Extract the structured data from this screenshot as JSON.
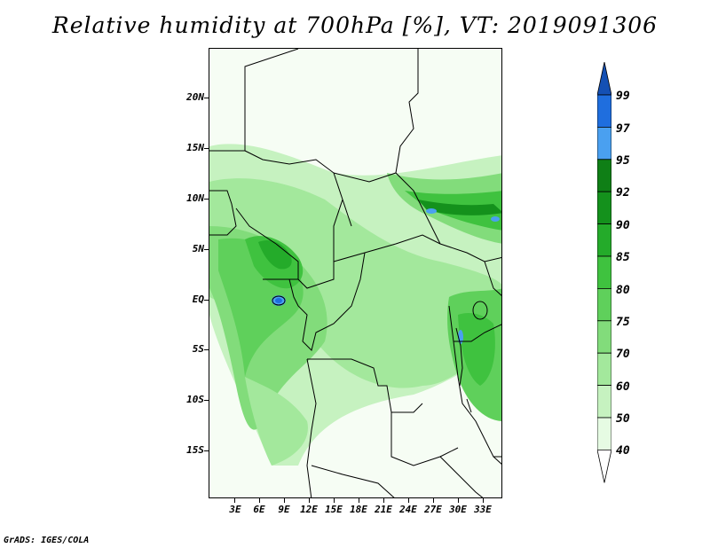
{
  "title": "Relative humidity at 700hPa [%], VT: 2019091306",
  "credit": "GrADS: IGES/COLA",
  "lat_labels": [
    "20N",
    "15N",
    "10N",
    "5N",
    "EQ",
    "5S",
    "10S",
    "15S"
  ],
  "lon_labels": [
    "3E",
    "6E",
    "9E",
    "12E",
    "15E",
    "18E",
    "21E",
    "24E",
    "27E",
    "30E",
    "33E"
  ],
  "colorbar": {
    "levels": [
      "40",
      "50",
      "60",
      "70",
      "75",
      "80",
      "85",
      "90",
      "92",
      "95",
      "97",
      "99"
    ],
    "colors": [
      "#ffffff",
      "#e6fbe3",
      "#c6f2c0",
      "#a3e89c",
      "#82dc7b",
      "#5fd05b",
      "#3fc23f",
      "#24ab2a",
      "#14911c",
      "#0f7f16",
      "#4aa0f0",
      "#1f6ede",
      "#1450b4"
    ]
  },
  "map": {
    "domain_lon": [
      0,
      35
    ],
    "domain_lat": [
      -20,
      25
    ]
  }
}
